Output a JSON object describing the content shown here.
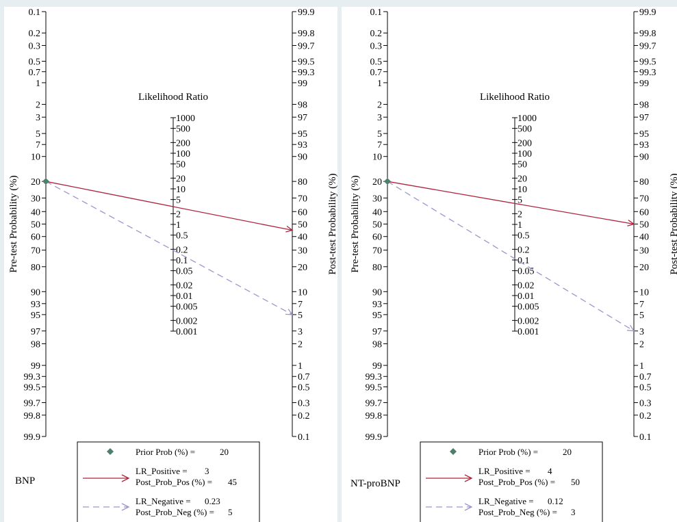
{
  "chart_data": [
    {
      "type": "nomogram",
      "title": "Likelihood Ratio",
      "ylabel_left": "Pre-test Probability (%)",
      "ylabel_right": "Post-test Probability (%)",
      "panel_label": "BNP",
      "left_ticks": [
        "0.1",
        "0.2",
        "0.3",
        "0.5",
        "0.7",
        "1",
        "2",
        "3",
        "5",
        "7",
        "10",
        "20",
        "30",
        "40",
        "50",
        "60",
        "70",
        "80",
        "90",
        "93",
        "95",
        "97",
        "98",
        "99",
        "99.3",
        "99.5",
        "99.7",
        "99.8",
        "99.9"
      ],
      "right_ticks": [
        "99.9",
        "99.8",
        "99.7",
        "99.5",
        "99.3",
        "99",
        "98",
        "97",
        "95",
        "93",
        "90",
        "80",
        "70",
        "60",
        "50",
        "40",
        "30",
        "20",
        "10",
        "7",
        "5",
        "3",
        "2",
        "1",
        "0.7",
        "0.5",
        "0.3",
        "0.2",
        "0.1"
      ],
      "lr_ticks": [
        "1000",
        "500",
        "200",
        "100",
        "50",
        "20",
        "10",
        "5",
        "2",
        "1",
        "0.5",
        "0.2",
        "0.1",
        "0.05",
        "0.02",
        "0.01",
        "0.005",
        "0.002",
        "0.001"
      ],
      "prior_prob": 20,
      "lr_positive": 3,
      "post_prob_pos": 45,
      "lr_negative": 0.23,
      "post_prob_neg": 5,
      "legend": {
        "prior_label": "Prior Prob (%) =",
        "prior_value": "20",
        "lrpos_label": "LR_Positive =",
        "lrpos_value": "3",
        "postpos_label": "Post_Prob_Pos (%) =",
        "postpos_value": "45",
        "lrneg_label": "LR_Negative =",
        "lrneg_value": "0.23",
        "postneg_label": "Post_Prob_Neg (%) =",
        "postneg_value": "5"
      }
    },
    {
      "type": "nomogram",
      "title": "Likelihood Ratio",
      "ylabel_left": "Pre-test Probability (%)",
      "ylabel_right": "Post-test Probability (%)",
      "panel_label": "NT-proBNP",
      "left_ticks": [
        "0.1",
        "0.2",
        "0.3",
        "0.5",
        "0.7",
        "1",
        "2",
        "3",
        "5",
        "7",
        "10",
        "20",
        "30",
        "40",
        "50",
        "60",
        "70",
        "80",
        "90",
        "93",
        "95",
        "97",
        "98",
        "99",
        "99.3",
        "99.5",
        "99.7",
        "99.8",
        "99.9"
      ],
      "right_ticks": [
        "99.9",
        "99.8",
        "99.7",
        "99.5",
        "99.3",
        "99",
        "98",
        "97",
        "95",
        "93",
        "90",
        "80",
        "70",
        "60",
        "50",
        "40",
        "30",
        "20",
        "10",
        "7",
        "5",
        "3",
        "2",
        "1",
        "0.7",
        "0.5",
        "0.3",
        "0.2",
        "0.1"
      ],
      "lr_ticks": [
        "1000",
        "500",
        "200",
        "100",
        "50",
        "20",
        "10",
        "5",
        "2",
        "1",
        "0.5",
        "0.2",
        "0.1",
        "0.05",
        "0.02",
        "0.01",
        "0.005",
        "0.002",
        "0.001"
      ],
      "prior_prob": 20,
      "lr_positive": 4,
      "post_prob_pos": 50,
      "lr_negative": 0.12,
      "post_prob_neg": 3,
      "legend": {
        "prior_label": "Prior Prob (%) =",
        "prior_value": "20",
        "lrpos_label": "LR_Positive =",
        "lrpos_value": "4",
        "postpos_label": "Post_Prob_Pos (%) =",
        "postpos_value": "50",
        "lrneg_label": "LR_Negative =",
        "lrneg_value": "0.12",
        "postneg_label": "Post_Prob_Neg (%) =",
        "postneg_value": "3"
      }
    }
  ],
  "colors": {
    "positive_line": "#b0223c",
    "negative_line": "#9b96cc",
    "prior_marker": "#4e7f6b",
    "gutter": "#e6eef1"
  }
}
